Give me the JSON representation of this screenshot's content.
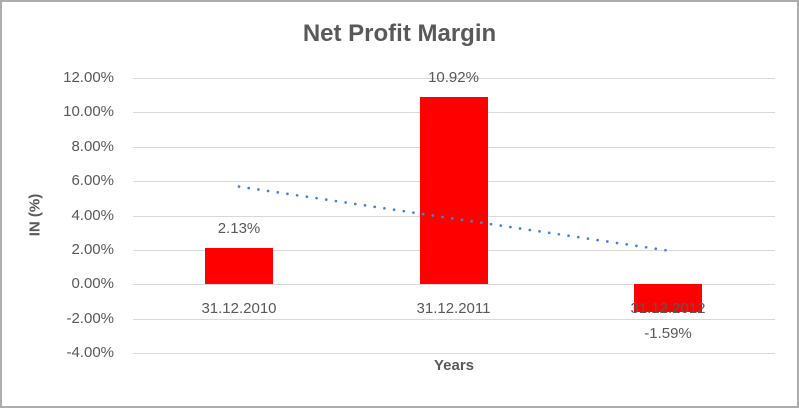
{
  "window": {
    "background": "#ffffff",
    "border_color": "#adadad"
  },
  "chart_data": {
    "type": "bar",
    "title": "Net Profit Margin",
    "xlabel": "Years",
    "ylabel": "IN (%)",
    "categories": [
      "31.12.2010",
      "31.12.2011",
      "31.12.2012"
    ],
    "values": [
      2.13,
      10.92,
      -1.59
    ],
    "data_labels": [
      "2.13%",
      "10.92%",
      "-1.59%"
    ],
    "ytick_labels": [
      "12.00%",
      "10.00%",
      "8.00%",
      "6.00%",
      "4.00%",
      "2.00%",
      "0.00%",
      "-2.00%",
      "-4.00%"
    ],
    "ylim": [
      -4,
      12
    ],
    "ytick_step": 2,
    "grid": true,
    "legend": false,
    "colors": {
      "bar": "#ff0000",
      "text": "#595959",
      "gridline": "#d9d9d9",
      "trendline": "#4a82c4"
    },
    "trendline": {
      "type": "linear",
      "style": "dotted",
      "series": "values",
      "fit_endpoints_pct": [
        5.68,
        1.96
      ]
    }
  }
}
